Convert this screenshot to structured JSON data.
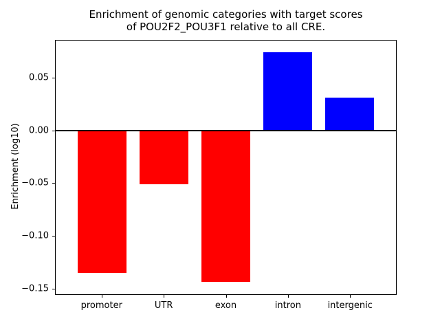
{
  "title": {
    "line1": "Enrichment of genomic categories with target scores",
    "line2": "of POU2F2_POU3F1 relative to all CRE."
  },
  "chart_data": {
    "type": "bar",
    "title": "Enrichment of genomic categories with target scores\nof POU2F2_POU3F1 relative to all CRE.",
    "categories": [
      "promoter",
      "UTR",
      "exon",
      "intron",
      "intergenic"
    ],
    "values": [
      -0.135,
      -0.051,
      -0.144,
      0.0745,
      0.031
    ],
    "bar_colors": [
      "#ff0000",
      "#ff0000",
      "#ff0000",
      "#0000ff",
      "#0000ff"
    ],
    "negative_color": "#ff0000",
    "positive_color": "#0000ff",
    "xlabel": "",
    "ylabel": "Enrichment (log10)",
    "ylim": [
      -0.1555,
      0.0855
    ],
    "yticks": [
      0.05,
      0.0,
      -0.05,
      -0.1,
      -0.15
    ],
    "ytick_labels": [
      "0.05",
      "0.00",
      "−0.05",
      "−0.10",
      "−0.15"
    ],
    "zero_line": true,
    "grid": false,
    "legend": null,
    "bar_width_frac": 0.8
  }
}
